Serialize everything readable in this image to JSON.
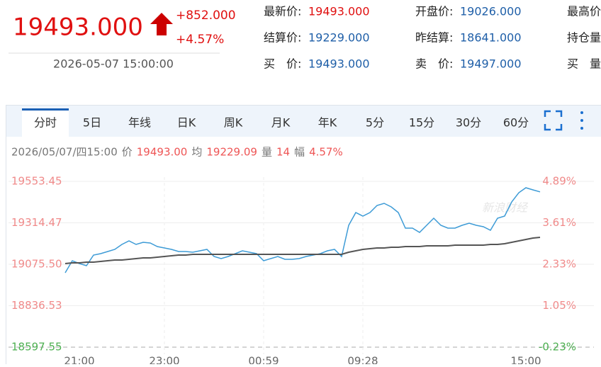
{
  "header": {
    "price": "19493.000",
    "change": "+852.000",
    "change_pct": "+4.57%",
    "datetime": "2026-05-07 15:00:00"
  },
  "quote_fields": [
    [
      {
        "label": "最新价:",
        "value": "19493.000"
      },
      {
        "label": "开盘价:",
        "value": "19026.000"
      },
      {
        "label": "最高价"
      }
    ],
    [
      {
        "label": "结算价:",
        "value": "19229.000"
      },
      {
        "label": "昨结算:",
        "value": "18641.000"
      },
      {
        "label": "持仓量"
      }
    ],
    [
      {
        "label": "买　价:",
        "value": "19493.000"
      },
      {
        "label": "卖　价:",
        "value": "19497.000"
      },
      {
        "label": "买　量"
      }
    ]
  ],
  "tabs": [
    "分时",
    "5日",
    "年线",
    "日K",
    "周K",
    "月K",
    "年K",
    "5分",
    "15分",
    "30分",
    "60分"
  ],
  "info": {
    "datetime": "2026/05/07/四15:00",
    "price_label": "价",
    "price": "19493.00",
    "avg_label": "均",
    "avg": "19229.09",
    "vol_label": "量",
    "vol": "14",
    "amp_label": "幅",
    "amp": "4.57%"
  },
  "watermark": "新浪财经",
  "chart_data": {
    "type": "line",
    "categories": [
      null,
      null,
      "21:00",
      null,
      null,
      null,
      null,
      null,
      null,
      null,
      null,
      null,
      null,
      null,
      "23:00",
      null,
      null,
      null,
      null,
      null,
      null,
      null,
      null,
      null,
      null,
      null,
      null,
      null,
      "00:59",
      null,
      null,
      null,
      null,
      null,
      null,
      null,
      null,
      null,
      null,
      null,
      null,
      null,
      "09:28",
      null,
      null,
      null,
      null,
      null,
      null,
      null,
      null,
      null,
      null,
      null,
      null,
      null,
      null,
      null,
      null,
      null,
      null,
      null,
      null,
      null,
      null,
      "15:00",
      null,
      null
    ],
    "series": [
      {
        "color": "#3d9bd6",
        "values": [
          19026.5,
          19096.0,
          19079.6,
          19067.3,
          19128.6,
          19136.8,
          19149.0,
          19161.3,
          19189.9,
          19210.3,
          19189.9,
          19202.1,
          19198.1,
          19177.6,
          19169.5,
          19161.3,
          19149.0,
          19149.0,
          19145.0,
          19153.1,
          19161.3,
          19120.4,
          19108.2,
          19120.4,
          19136.8,
          19153.1,
          19145.0,
          19136.8,
          19096.0,
          19108.2,
          19120.4,
          19104.1,
          19104.1,
          19108.2,
          19120.4,
          19128.6,
          19136.8,
          19153.1,
          19161.3,
          19120.4,
          19300.2,
          19373.7,
          19353.3,
          19373.7,
          19414.6,
          19426.8,
          19406.4,
          19373.7,
          19283.9,
          19283.9,
          19259.3,
          19300.2,
          19341.0,
          19300.2,
          19283.9,
          19283.9,
          19300.2,
          19312.4,
          19300.2,
          19292.0,
          19271.6,
          19341.0,
          19353.3,
          19435.0,
          19488.1,
          19516.7,
          19504.4,
          19493.0
        ]
      },
      {
        "color": "#555555",
        "values": [
          19079.6,
          19083.7,
          19083.7,
          19087.8,
          19087.8,
          19091.8,
          19096.0,
          19100.0,
          19100.0,
          19104.1,
          19108.2,
          19112.3,
          19112.3,
          19116.4,
          19120.4,
          19124.5,
          19128.6,
          19128.6,
          19132.7,
          19132.7,
          19132.7,
          19132.7,
          19132.7,
          19132.7,
          19132.7,
          19132.7,
          19132.7,
          19132.7,
          19132.7,
          19132.7,
          19132.7,
          19132.7,
          19132.7,
          19132.7,
          19132.7,
          19132.7,
          19132.7,
          19132.7,
          19132.7,
          19132.7,
          19145.0,
          19153.1,
          19161.3,
          19165.4,
          19169.5,
          19169.5,
          19173.5,
          19173.5,
          19177.6,
          19177.6,
          19177.6,
          19181.7,
          19181.7,
          19181.7,
          19181.7,
          19185.8,
          19185.8,
          19185.8,
          19185.8,
          19185.8,
          19189.9,
          19189.9,
          19194.0,
          19202.1,
          19210.3,
          19218.4,
          19226.6,
          19230.7
        ]
      }
    ],
    "ylim": [
      18597.55,
      19553.45
    ],
    "yticks": [
      19553.45,
      19314.47,
      {
        "value": 19075.5,
        "label": "19075.50"
      },
      18836.53,
      18597.55
    ],
    "y2lim": [
      -0.23,
      4.89
    ],
    "y2ticks": [
      {
        "value": 4.89,
        "label": "4.89%"
      },
      {
        "value": 3.61,
        "label": "3.61%"
      },
      {
        "value": 2.33,
        "label": "2.33%"
      },
      {
        "value": 1.05,
        "label": "1.05%"
      },
      {
        "value": -0.23,
        "label": "-0.23%"
      }
    ],
    "grid": true
  }
}
